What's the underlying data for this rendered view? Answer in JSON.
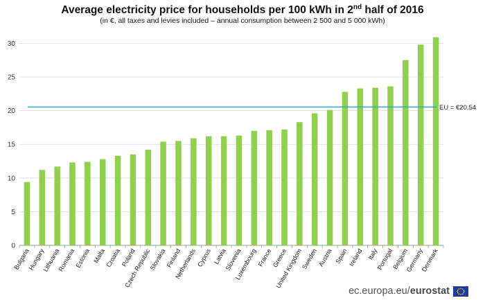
{
  "chart_data": {
    "type": "bar",
    "title": "Average electricity price for households per 100 kWh in 2nd half of 2016",
    "title_main": "Average electricity price for households per 100 kWh in 2",
    "title_sup": "nd",
    "title_end": " half of 2016",
    "subtitle": "(in €, all taxes and levies included – annual consumption between 2 500 and 5 000 kWh)",
    "categories": [
      "Bulgaria",
      "Hungary",
      "Lithuania",
      "Romania",
      "Estonia",
      "Malta",
      "Croatia",
      "Poland",
      "Czech Republic",
      "Slovakia",
      "Finland",
      "Netherlands",
      "Cyprus",
      "Latvia",
      "Slovenia",
      "Luxembourg",
      "France",
      "Greece",
      "United Kingdom",
      "Sweden",
      "Austria",
      "Spain",
      "Ireland",
      "Italy",
      "Portugal",
      "Belgium",
      "Germany",
      "Denmark"
    ],
    "values": [
      9.4,
      11.2,
      11.7,
      12.3,
      12.4,
      12.8,
      13.3,
      13.5,
      14.2,
      15.4,
      15.5,
      15.9,
      16.2,
      16.2,
      16.3,
      17.0,
      17.1,
      17.2,
      18.3,
      19.6,
      20.1,
      22.8,
      23.3,
      23.4,
      23.6,
      27.5,
      29.8,
      30.9
    ],
    "ylim": [
      0,
      32
    ],
    "yticks": [
      0,
      5,
      10,
      15,
      20,
      25,
      30
    ],
    "reference_line": {
      "value": 20.54,
      "label": "EU = €20.54"
    },
    "grid": true,
    "colors": {
      "bar": "#8fd14f",
      "reference": "#2aa7c2",
      "grid": "#d9d9d9",
      "axis": "#9a9a9a"
    }
  },
  "footer": {
    "site": "ec.europa.eu/",
    "brand": "eurostat"
  },
  "icons": {
    "flag": "eu-flag-icon"
  }
}
